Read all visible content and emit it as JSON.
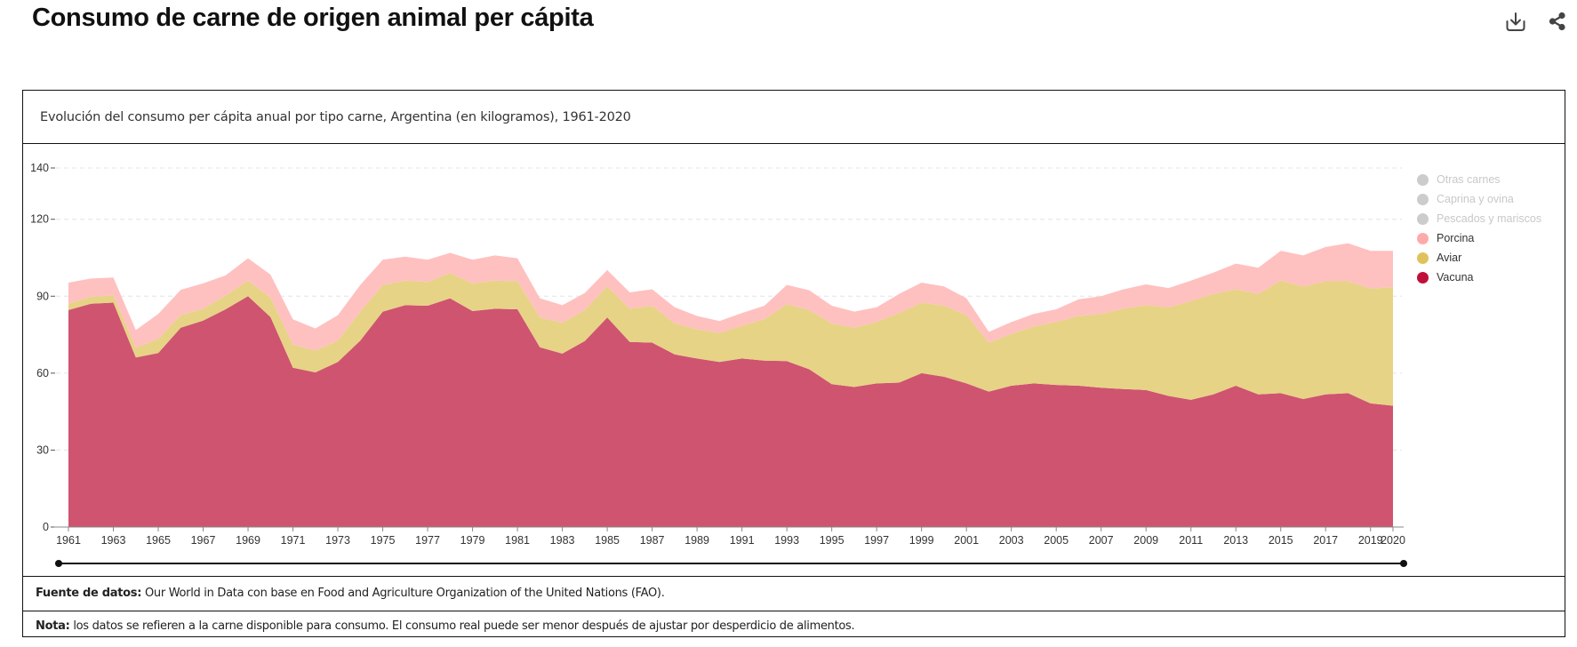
{
  "header": {
    "title": "Consumo de carne de origen animal per cápita",
    "icons": [
      "download-icon",
      "share-icon"
    ]
  },
  "card": {
    "subtitle": "Evolución del consumo per cápita anual por tipo carne, Argentina (en kilogramos), 1961-2020",
    "source_label": "Fuente de datos:",
    "source_text": " Our World in Data con base en Food and Agriculture Organization of the United Nations (FAO).",
    "note_label": "Nota:",
    "note_text": " los datos se refieren a la carne disponible para consumo. El consumo real puede ser menor después de ajustar por desperdicio de alimentos."
  },
  "legend": [
    {
      "label": "Otras carnes",
      "color": "#cccccc",
      "active": false
    },
    {
      "label": "Caprina y ovina",
      "color": "#cccccc",
      "active": false
    },
    {
      "label": "Pescados y mariscos",
      "color": "#cccccc",
      "active": false
    },
    {
      "label": "Porcina",
      "color": "#ffaaaa",
      "active": true
    },
    {
      "label": "Aviar",
      "color": "#dfc35a",
      "active": true
    },
    {
      "label": "Vacuna",
      "color": "#c0103a",
      "active": true
    }
  ],
  "slider": {
    "start": 1961,
    "end": 2020
  },
  "chart_data": {
    "type": "area",
    "stacked": true,
    "title": "Evolución del consumo per cápita anual por tipo carne, Argentina (en kilogramos), 1961-2020",
    "xlabel": "",
    "ylabel": "",
    "ylim": [
      0,
      140
    ],
    "yticks": [
      0,
      30,
      60,
      90,
      120,
      140
    ],
    "xlim": [
      1961,
      2020
    ],
    "xticks": [
      1961,
      1963,
      1965,
      1967,
      1969,
      1971,
      1973,
      1975,
      1977,
      1979,
      1981,
      1983,
      1985,
      1987,
      1989,
      1991,
      1993,
      1995,
      1997,
      1999,
      2001,
      2003,
      2005,
      2007,
      2009,
      2011,
      2013,
      2015,
      2017,
      2019,
      2020
    ],
    "grid": true,
    "legend_position": "right",
    "x": [
      1961,
      1962,
      1963,
      1964,
      1965,
      1966,
      1967,
      1968,
      1969,
      1970,
      1971,
      1972,
      1973,
      1974,
      1975,
      1976,
      1977,
      1978,
      1979,
      1980,
      1981,
      1982,
      1983,
      1984,
      1985,
      1986,
      1987,
      1988,
      1989,
      1990,
      1991,
      1992,
      1993,
      1994,
      1995,
      1996,
      1997,
      1998,
      1999,
      2000,
      2001,
      2002,
      2003,
      2004,
      2005,
      2006,
      2007,
      2008,
      2009,
      2010,
      2011,
      2012,
      2013,
      2014,
      2015,
      2016,
      2017,
      2018,
      2019,
      2020
    ],
    "series": [
      {
        "name": "Vacuna",
        "color": "#cf5470",
        "values": [
          84.6,
          87.1,
          87.5,
          66.1,
          67.8,
          77.7,
          80.5,
          84.9,
          90.0,
          81.9,
          62.1,
          60.3,
          64.4,
          72.7,
          84.0,
          86.5,
          86.3,
          89.2,
          84.2,
          85.1,
          84.9,
          70.1,
          67.6,
          72.5,
          81.7,
          72.2,
          71.9,
          67.3,
          65.7,
          64.4,
          65.7,
          64.9,
          64.7,
          61.5,
          55.7,
          54.6,
          56.0,
          56.3,
          60.0,
          58.6,
          56.0,
          52.8,
          55.1,
          56.0,
          55.4,
          55.1,
          54.3,
          53.8,
          53.4,
          51.1,
          49.6,
          51.7,
          55.1,
          51.7,
          52.2,
          49.9,
          51.7,
          52.2,
          48.2,
          47.3
        ]
      },
      {
        "name": "Aviar",
        "color": "#e6d386",
        "values": [
          2.5,
          2.7,
          2.8,
          3.8,
          5.6,
          4.9,
          4.6,
          5.4,
          6.1,
          7.6,
          9.0,
          8.5,
          8.3,
          11.3,
          10.4,
          9.6,
          9.2,
          9.8,
          10.8,
          11.0,
          10.9,
          11.6,
          12.0,
          12.1,
          12.1,
          12.9,
          14.4,
          12.1,
          11.4,
          11.3,
          12.8,
          16.2,
          22.2,
          23.1,
          23.7,
          23.1,
          24.0,
          27.1,
          27.5,
          27.7,
          26.6,
          19.1,
          20.2,
          22.2,
          24.6,
          27.2,
          28.8,
          31.3,
          33.1,
          34.6,
          38.5,
          39.2,
          37.6,
          39.2,
          43.9,
          43.9,
          44.1,
          43.6,
          44.8,
          46.2
        ]
      },
      {
        "name": "Porcina",
        "color": "#ffc0c0",
        "values": [
          8.2,
          7.1,
          7.0,
          6.9,
          9.7,
          9.9,
          9.9,
          7.8,
          8.7,
          8.9,
          9.9,
          8.6,
          9.9,
          10.4,
          9.8,
          9.3,
          8.7,
          7.9,
          9.2,
          9.8,
          9.0,
          7.5,
          6.9,
          6.6,
          6.4,
          6.4,
          6.4,
          6.3,
          5.2,
          4.6,
          4.9,
          5.2,
          7.5,
          7.7,
          6.9,
          6.3,
          5.7,
          7.5,
          7.8,
          7.5,
          6.6,
          4.2,
          4.6,
          4.9,
          4.9,
          6.5,
          6.9,
          7.6,
          8.1,
          7.5,
          8.0,
          8.3,
          10.0,
          10.2,
          11.6,
          12.1,
          13.4,
          14.8,
          14.7,
          14.2
        ]
      }
    ]
  }
}
